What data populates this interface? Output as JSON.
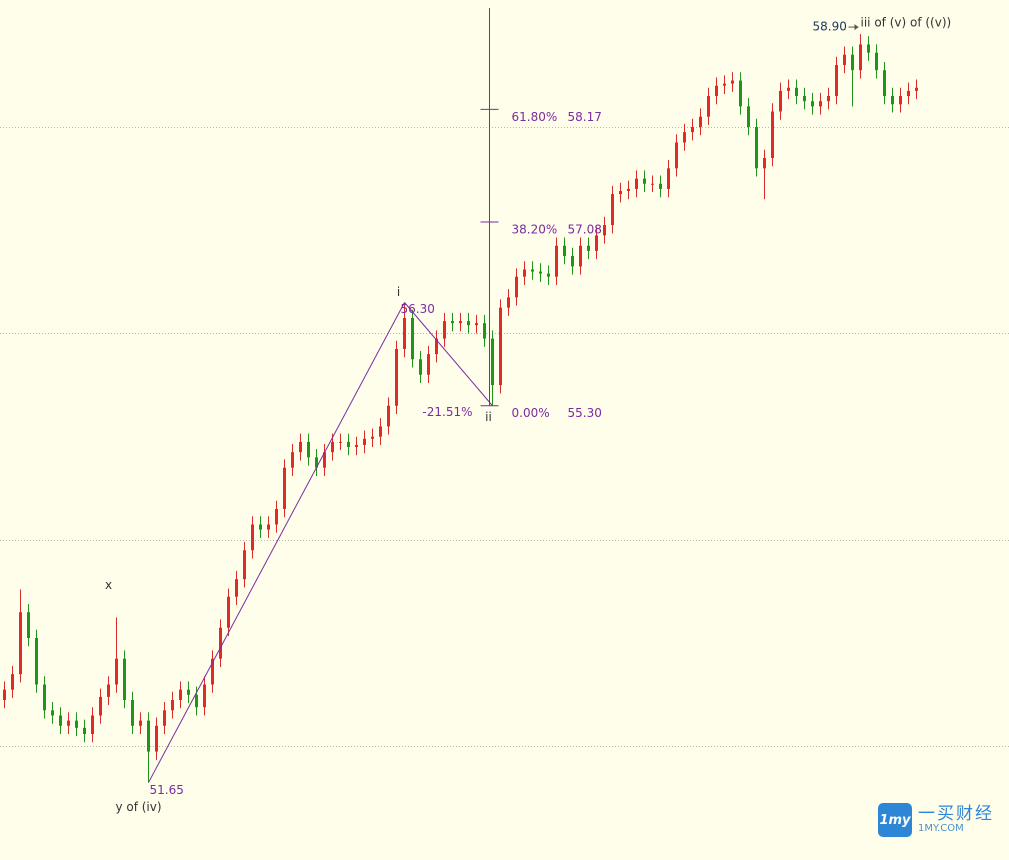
{
  "chart_data": {
    "type": "candlestick",
    "up_color": "#dd2a2a",
    "down_color": "#1e961e",
    "ylim": [
      50.9,
      59.23
    ],
    "yticks": [
      52,
      54,
      56,
      58
    ],
    "grid": true,
    "open": [
      52.45,
      52.55,
      52.7,
      53.3,
      53.05,
      52.6,
      52.35,
      52.3,
      52.2,
      52.25,
      52.18,
      52.12,
      52.3,
      52.48,
      52.6,
      52.85,
      52.45,
      52.2,
      52.25,
      51.95,
      52.2,
      52.35,
      52.45,
      52.55,
      52.5,
      52.38,
      52.6,
      52.85,
      53.15,
      53.45,
      53.62,
      53.9,
      54.15,
      54.1,
      54.15,
      54.3,
      54.7,
      54.85,
      54.95,
      54.8,
      54.7,
      54.85,
      54.95,
      54.95,
      54.9,
      54.92,
      54.98,
      55.0,
      55.1,
      55.3,
      55.85,
      56.15,
      55.75,
      55.6,
      55.8,
      55.95,
      56.12,
      56.1,
      56.12,
      56.08,
      56.1,
      55.95,
      55.5,
      56.25,
      56.35,
      56.55,
      56.62,
      56.6,
      56.58,
      56.55,
      56.85,
      56.75,
      56.65,
      56.85,
      56.8,
      56.95,
      57.05,
      57.35,
      57.38,
      57.4,
      57.5,
      57.45,
      57.45,
      57.4,
      57.6,
      57.85,
      57.95,
      58.0,
      58.1,
      58.3,
      58.4,
      58.42,
      58.45,
      58.2,
      58.0,
      57.6,
      57.7,
      58.15,
      58.35,
      58.38,
      58.3,
      58.25,
      58.2,
      58.25,
      58.3,
      58.6,
      58.7,
      58.55,
      58.8,
      58.72,
      58.55,
      58.3,
      58.22,
      58.3,
      58.35
    ],
    "high": [
      52.63,
      52.78,
      53.52,
      53.38,
      53.13,
      52.68,
      52.43,
      52.38,
      52.33,
      52.33,
      52.26,
      52.38,
      52.56,
      52.68,
      53.25,
      52.93,
      52.53,
      52.33,
      52.33,
      52.28,
      52.43,
      52.53,
      52.63,
      52.63,
      52.58,
      52.68,
      52.93,
      53.23,
      53.53,
      53.7,
      53.98,
      54.23,
      54.23,
      54.23,
      54.38,
      54.78,
      54.93,
      55.03,
      55.03,
      54.88,
      54.93,
      55.03,
      55.03,
      55.03,
      55.0,
      55.06,
      55.08,
      55.18,
      55.38,
      55.93,
      56.3,
      56.23,
      55.83,
      55.88,
      56.03,
      56.2,
      56.2,
      56.2,
      56.2,
      56.18,
      56.18,
      56.03,
      56.33,
      56.43,
      56.63,
      56.7,
      56.7,
      56.68,
      56.66,
      56.93,
      56.93,
      56.83,
      56.93,
      56.93,
      57.03,
      57.13,
      57.43,
      57.46,
      57.48,
      57.58,
      57.58,
      57.53,
      57.53,
      57.68,
      57.93,
      58.03,
      58.08,
      58.18,
      58.38,
      58.48,
      58.5,
      58.53,
      58.53,
      58.28,
      58.08,
      57.78,
      58.23,
      58.43,
      58.46,
      58.46,
      58.38,
      58.33,
      58.33,
      58.38,
      58.68,
      58.78,
      58.78,
      58.9,
      58.88,
      58.8,
      58.63,
      58.38,
      58.38,
      58.43,
      58.46
    ],
    "low": [
      52.37,
      52.47,
      52.62,
      52.97,
      52.52,
      52.27,
      52.22,
      52.12,
      52.12,
      52.1,
      52.04,
      52.04,
      52.22,
      52.4,
      52.52,
      52.37,
      52.12,
      52.12,
      51.65,
      51.87,
      52.12,
      52.27,
      52.37,
      52.42,
      52.3,
      52.3,
      52.52,
      52.77,
      53.07,
      53.37,
      53.54,
      53.82,
      54.02,
      54.02,
      54.07,
      54.22,
      54.62,
      54.77,
      54.72,
      54.62,
      54.62,
      54.77,
      54.87,
      54.82,
      54.82,
      54.84,
      54.9,
      54.92,
      55.02,
      55.22,
      55.77,
      55.67,
      55.52,
      55.52,
      55.72,
      55.87,
      56.02,
      56.02,
      56.0,
      56.0,
      55.87,
      55.3,
      55.42,
      56.17,
      56.27,
      56.47,
      56.52,
      56.5,
      56.47,
      56.47,
      56.67,
      56.57,
      56.57,
      56.72,
      56.72,
      56.87,
      56.97,
      57.27,
      57.3,
      57.32,
      57.37,
      57.37,
      57.32,
      57.32,
      57.52,
      57.77,
      57.87,
      57.92,
      58.02,
      58.22,
      58.32,
      58.34,
      58.12,
      57.92,
      57.52,
      57.3,
      57.62,
      58.07,
      58.27,
      58.22,
      58.17,
      58.12,
      58.12,
      58.17,
      58.22,
      58.52,
      58.2,
      58.47,
      58.64,
      58.47,
      58.22,
      58.14,
      58.14,
      58.22,
      58.27
    ],
    "close": [
      52.55,
      52.7,
      53.3,
      53.05,
      52.6,
      52.35,
      52.3,
      52.2,
      52.25,
      52.18,
      52.12,
      52.3,
      52.48,
      52.6,
      52.85,
      52.45,
      52.2,
      52.25,
      51.95,
      52.2,
      52.35,
      52.45,
      52.55,
      52.5,
      52.38,
      52.6,
      52.85,
      53.15,
      53.45,
      53.62,
      53.9,
      54.15,
      54.1,
      54.15,
      54.3,
      54.7,
      54.85,
      54.95,
      54.8,
      54.7,
      54.85,
      54.95,
      54.95,
      54.9,
      54.92,
      54.98,
      55.0,
      55.1,
      55.3,
      55.85,
      56.15,
      55.75,
      55.6,
      55.8,
      55.95,
      56.12,
      56.1,
      56.12,
      56.08,
      56.1,
      55.95,
      55.5,
      56.25,
      56.35,
      56.55,
      56.62,
      56.6,
      56.58,
      56.55,
      56.85,
      56.75,
      56.65,
      56.85,
      56.8,
      56.95,
      57.05,
      57.35,
      57.38,
      57.4,
      57.5,
      57.45,
      57.45,
      57.4,
      57.6,
      57.85,
      57.95,
      58.0,
      58.1,
      58.3,
      58.4,
      58.42,
      58.45,
      58.2,
      58.0,
      57.6,
      57.7,
      58.15,
      58.35,
      58.38,
      58.3,
      58.25,
      58.2,
      58.25,
      58.3,
      58.6,
      58.7,
      58.55,
      58.8,
      58.72,
      58.55,
      58.3,
      58.22,
      58.3,
      58.35,
      58.38
    ],
    "pivots": [
      {
        "label": "x",
        "price": 53.25
      },
      {
        "label": "y of (iv)",
        "price": 51.65
      },
      {
        "label": "i",
        "price": 56.3,
        "price_label": "56.30"
      },
      {
        "label": "ii",
        "price": 55.3
      },
      {
        "label": "iii of (v) of ((v))",
        "price": 58.9,
        "price_label": "58.90"
      }
    ],
    "wave_color": "#7a2ca0",
    "retracement": "-21.51%",
    "fib_levels": [
      {
        "ratio": "61.80%",
        "price": 58.17
      },
      {
        "ratio": "38.20%",
        "price": 57.08
      },
      {
        "ratio": "0.00%",
        "price": 55.3,
        "price_label": "55.30"
      }
    ]
  },
  "watermark": {
    "icon": "1my",
    "name": "一买财经",
    "site": "1MY.COM"
  }
}
